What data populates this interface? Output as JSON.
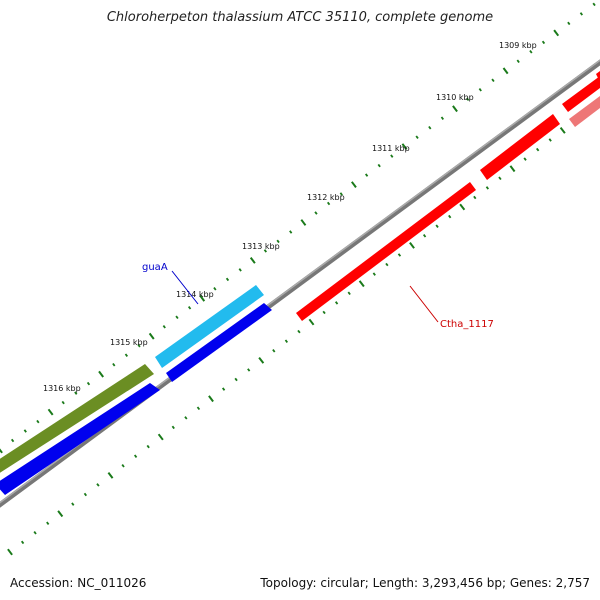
{
  "title": "Chloroherpeton thalassium ATCC 35110, complete genome",
  "footer": {
    "accession": "Accession: NC_011026",
    "stats": "Topology: circular; Length: 3,293,456 bp; Genes: 2,757"
  },
  "tick_labels": [
    "1309 kbp",
    "1310 kbp",
    "1311 kbp",
    "1312 kbp",
    "1313 kbp",
    "1314 kbp",
    "1315 kbp",
    "1316 kbp"
  ],
  "gene_labels": {
    "guaA": "guaA",
    "ctha": "Ctha_1117"
  },
  "colors": {
    "forward_cds": "#0000ee",
    "reverse_cds": "#ff0000",
    "labeled_gene": "#22bbee",
    "other_gene": "#6b8e23",
    "backbone": "#777777",
    "ticks": "#1a7a1a"
  }
}
